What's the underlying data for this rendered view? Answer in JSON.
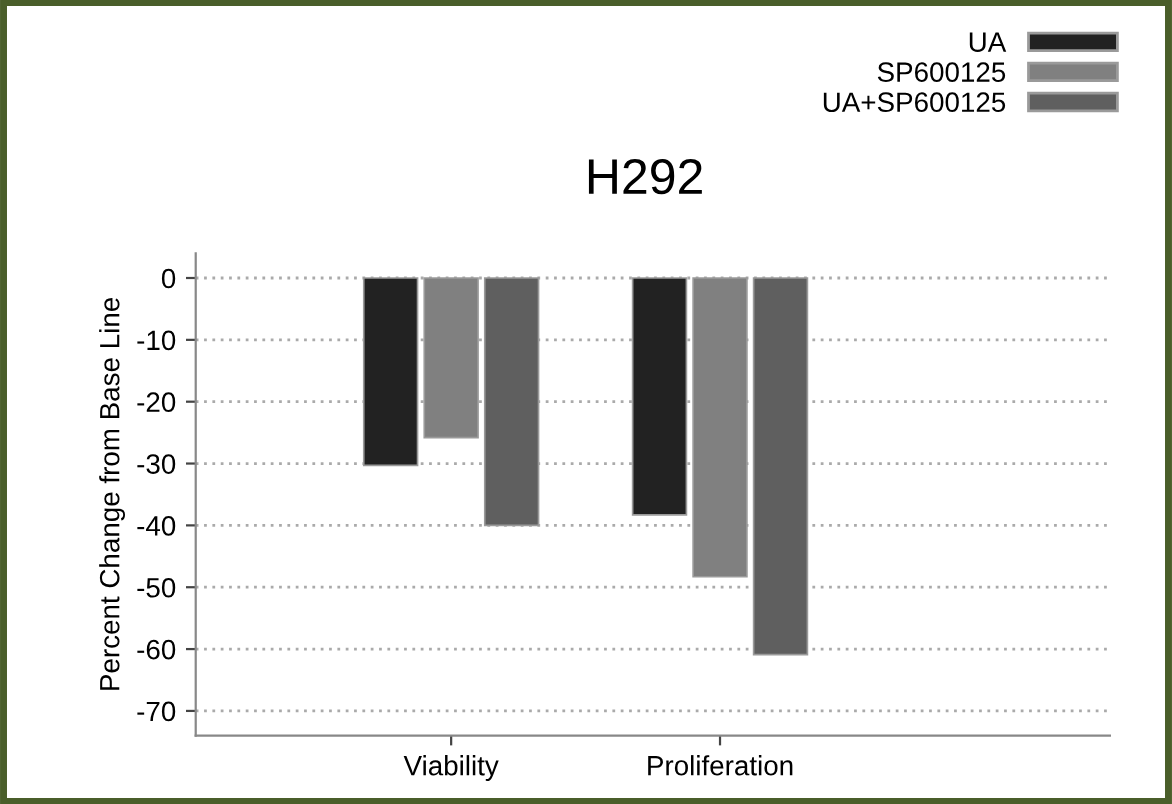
{
  "chart_data": {
    "type": "bar",
    "title": "H292",
    "ylabel": "Percent Change from Base Line",
    "categories": [
      "Viability",
      "Proliferation"
    ],
    "series": [
      {
        "name": "UA",
        "color": "#222222",
        "values": [
          -30.3,
          -38.3
        ]
      },
      {
        "name": "SP600125",
        "color": "#808080",
        "values": [
          -25.8,
          -48.3
        ]
      },
      {
        "name": "UA+SP600125",
        "color": "#5f5f5f",
        "values": [
          -40.0,
          -60.9
        ]
      }
    ],
    "ylim": [
      -74,
      4
    ],
    "yticks": [
      0,
      -10,
      -20,
      -30,
      -40,
      -50,
      -60,
      -70
    ],
    "grid": "y",
    "legend": "top right"
  }
}
